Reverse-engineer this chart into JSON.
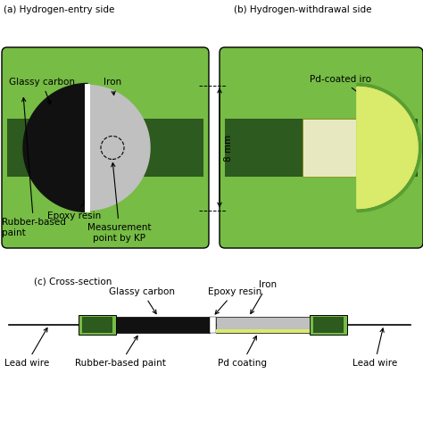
{
  "bg_color": "#ffffff",
  "light_green": "#76bc45",
  "dark_green": "#2d5a1e",
  "black": "#111111",
  "light_gray": "#c0c0c0",
  "white": "#ffffff",
  "yellow_green": "#daea6a",
  "med_green_b": "#5a9e32",
  "panel_a_title": "(a) Hydrogen-entry side",
  "panel_b_title": "(b) Hydrogen-withdrawal side",
  "panel_c_title": "(c) Cross-section",
  "label_glassy_carbon": "Glassy carbon",
  "label_iron": "Iron",
  "label_epoxy_resin": "Epoxy resin",
  "label_rubber_paint": "Rubber-based\npaint",
  "label_measurement": "Measurement\npoint by KP",
  "label_pd_coated": "Pd-coated iro",
  "label_lead_wire_l": "Lead wire",
  "label_lead_wire_r": "Lead wire",
  "label_rubber_paint_c": "Rubber-based paint",
  "label_pd_coating": "Pd coating",
  "label_glassy_carbon_c": "Glassy carbon",
  "label_epoxy_resin_c": "Epoxy resin",
  "label_iron_c": "Iron",
  "dim_label": "8 mm"
}
